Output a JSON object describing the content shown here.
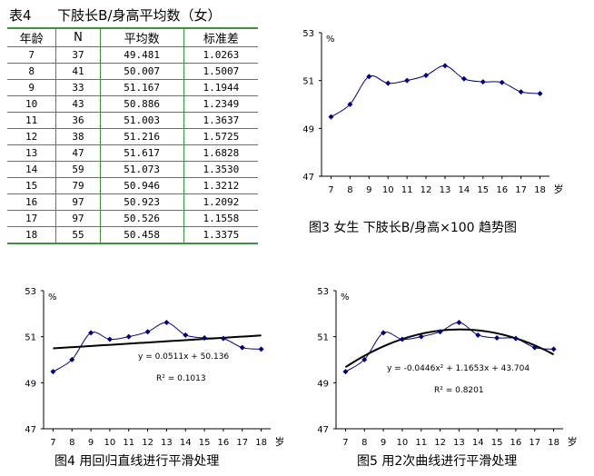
{
  "table": {
    "caption": "表4      下肢长B/身高平均数（女）",
    "headers": [
      "年龄",
      "N",
      "平均数",
      "标准差"
    ],
    "rows": [
      [
        "7",
        "37",
        "49.481",
        "1.0263"
      ],
      [
        "8",
        "41",
        "50.007",
        "1.5007"
      ],
      [
        "9",
        "33",
        "51.167",
        "1.1944"
      ],
      [
        "10",
        "43",
        "50.886",
        "1.2349"
      ],
      [
        "11",
        "36",
        "51.003",
        "1.3637"
      ],
      [
        "12",
        "38",
        "51.216",
        "1.5725"
      ],
      [
        "13",
        "47",
        "51.617",
        "1.6828"
      ],
      [
        "14",
        "59",
        "51.073",
        "1.3530"
      ],
      [
        "15",
        "79",
        "50.946",
        "1.3212"
      ],
      [
        "16",
        "97",
        "50.923",
        "1.2092"
      ],
      [
        "17",
        "97",
        "50.526",
        "1.1558"
      ],
      [
        "18",
        "55",
        "50.458",
        "1.3375"
      ]
    ],
    "border_color": "#3f8f3f"
  },
  "chart_data": [
    {
      "type": "line",
      "caption": "图3   女生  下肢长B/身高×100 趋势图",
      "unit_label": "%",
      "x_unit_label": "岁",
      "x": [
        7,
        8,
        9,
        10,
        11,
        12,
        13,
        14,
        15,
        16,
        17,
        18
      ],
      "y": [
        49.481,
        50.007,
        51.167,
        50.886,
        51.003,
        51.216,
        51.617,
        51.073,
        50.946,
        50.923,
        50.526,
        50.458
      ],
      "ylim": [
        47,
        53
      ],
      "yticks": [
        47,
        49,
        51,
        53
      ],
      "xticks": [
        7,
        8,
        9,
        10,
        11,
        12,
        13,
        14,
        15,
        16,
        17,
        18
      ],
      "line_color": "#000080",
      "grid": false
    },
    {
      "type": "line",
      "caption": "图4    用回归直线进行平滑处理",
      "unit_label": "%",
      "x_unit_label": "岁",
      "x": [
        7,
        8,
        9,
        10,
        11,
        12,
        13,
        14,
        15,
        16,
        17,
        18
      ],
      "y": [
        49.481,
        50.007,
        51.167,
        50.886,
        51.003,
        51.216,
        51.617,
        51.073,
        50.946,
        50.923,
        50.526,
        50.458
      ],
      "ylim": [
        47,
        53
      ],
      "yticks": [
        47,
        49,
        51,
        53
      ],
      "xticks": [
        7,
        8,
        9,
        10,
        11,
        12,
        13,
        14,
        15,
        16,
        17,
        18
      ],
      "fit": {
        "kind": "linear",
        "coeffs": [
          0.0511,
          50.136
        ],
        "equation": "y = 0.0511x + 50.136",
        "r2": "R² = 0.1013"
      },
      "line_color": "#000080",
      "grid": false
    },
    {
      "type": "line",
      "caption": "图5    用2次曲线进行平滑处理",
      "unit_label": "%",
      "x_unit_label": "岁",
      "x": [
        7,
        8,
        9,
        10,
        11,
        12,
        13,
        14,
        15,
        16,
        17,
        18
      ],
      "y": [
        49.481,
        50.007,
        51.167,
        50.886,
        51.003,
        51.216,
        51.617,
        51.073,
        50.946,
        50.923,
        50.526,
        50.458
      ],
      "ylim": [
        47,
        53
      ],
      "yticks": [
        47,
        49,
        51,
        53
      ],
      "xticks": [
        7,
        8,
        9,
        10,
        11,
        12,
        13,
        14,
        15,
        16,
        17,
        18
      ],
      "fit": {
        "kind": "quadratic",
        "coeffs": [
          -0.0446,
          1.1653,
          43.704
        ],
        "equation": "y = -0.0446x² + 1.1653x + 43.704",
        "r2": "R² = 0.8201"
      },
      "line_color": "#000080",
      "grid": false
    }
  ]
}
